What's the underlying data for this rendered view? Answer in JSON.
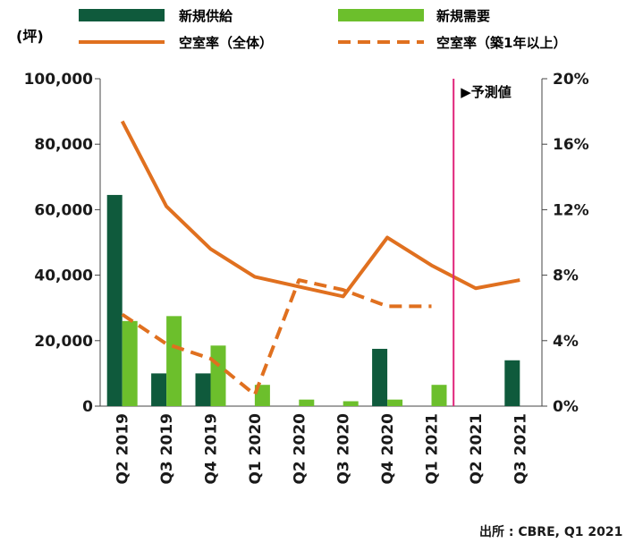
{
  "source_text": "出所 : CBRE, Q1 2021",
  "chart_data": {
    "type": "bar",
    "unit_left": "(坪)",
    "categories": [
      "Q2 2019",
      "Q3 2019",
      "Q4 2019",
      "Q1 2020",
      "Q2 2020",
      "Q3 2020",
      "Q4 2020",
      "Q1 2021",
      "Q2 2021",
      "Q3 2021"
    ],
    "y_left": {
      "ylim": [
        0,
        100000
      ],
      "ticks": [
        "0",
        "20,000",
        "40,000",
        "60,000",
        "80,000",
        "100,000"
      ]
    },
    "y_right": {
      "ylim": [
        0,
        20
      ],
      "ticks": [
        "0%",
        "4%",
        "8%",
        "12%",
        "16%",
        "20%"
      ]
    },
    "forecast_label": "▶予測値",
    "forecast_start_after": "Q1 2021",
    "legend_position": "top",
    "series": [
      {
        "name": "新規供給",
        "type": "bar",
        "axis": "left",
        "color": "#0f5a3c",
        "values": [
          64500,
          10000,
          10000,
          0,
          0,
          0,
          17500,
          0,
          0,
          14000
        ]
      },
      {
        "name": "新規需要",
        "type": "bar",
        "axis": "left",
        "color": "#6cbf2c",
        "values": [
          26000,
          27500,
          18500,
          6500,
          2000,
          1500,
          2000,
          6500,
          0,
          0
        ]
      },
      {
        "name": "空室率（全体）",
        "type": "line",
        "axis": "right",
        "color": "#e0701f",
        "dash": false,
        "values": [
          17.4,
          12.2,
          9.6,
          7.9,
          7.3,
          6.7,
          10.3,
          8.6,
          7.2,
          7.7
        ]
      },
      {
        "name": "空室率（築1年以上）",
        "type": "line",
        "axis": "right",
        "color": "#e0701f",
        "dash": true,
        "values": [
          5.6,
          3.8,
          2.9,
          0.7,
          7.7,
          7.1,
          6.1,
          6.1,
          null,
          null
        ]
      }
    ]
  }
}
